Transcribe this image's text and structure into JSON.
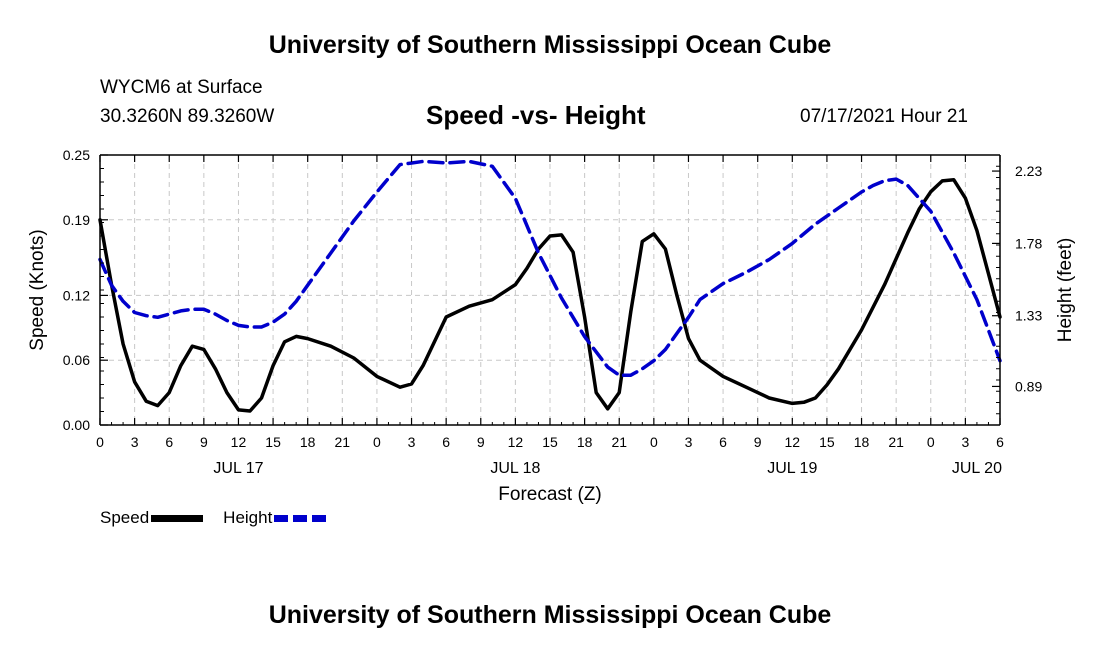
{
  "header": {
    "top_title": "University of Southern Mississippi Ocean Cube",
    "station": "WYCM6 at Surface",
    "coords": "30.3260N  89.3260W",
    "timestamp": "07/17/2021 Hour 21",
    "bottom_title": "University of Southern Mississippi Ocean Cube"
  },
  "chart_data": {
    "type": "line",
    "title": "Speed -vs- Height",
    "xlabel": "Forecast (Z)",
    "ylabel_left": "Speed (Knots)",
    "ylabel_right": "Height (feet)",
    "x_units": "hours from JUL 17 00Z",
    "xlim": [
      0,
      78
    ],
    "ylim_left": [
      0.0,
      0.25
    ],
    "ylim_right": [
      0.65,
      2.33
    ],
    "x_tick_hours": [
      0,
      3,
      6,
      9,
      12,
      15,
      18,
      21,
      24,
      27,
      30,
      33,
      36,
      39,
      42,
      45,
      48,
      51,
      54,
      57,
      60,
      63,
      66,
      69,
      72,
      75,
      78
    ],
    "x_tick_labels": [
      "0",
      "3",
      "6",
      "9",
      "12",
      "15",
      "18",
      "21",
      "0",
      "3",
      "6",
      "9",
      "12",
      "15",
      "18",
      "21",
      "0",
      "3",
      "6",
      "9",
      "12",
      "15",
      "18",
      "21",
      "0",
      "3",
      "6"
    ],
    "date_labels": [
      {
        "hour": 12,
        "label": "JUL 17"
      },
      {
        "hour": 36,
        "label": "JUL 18"
      },
      {
        "hour": 60,
        "label": "JUL 19"
      },
      {
        "hour": 76,
        "label": "JUL 20"
      }
    ],
    "y_left_ticks": [
      0.0,
      0.06,
      0.12,
      0.19,
      0.25
    ],
    "y_left_tick_labels": [
      "0.00",
      "0.06",
      "0.12",
      "0.19",
      "0.25"
    ],
    "y_right_ticks": [
      0.89,
      1.33,
      1.78,
      2.23
    ],
    "y_right_tick_labels": [
      "0.89",
      "1.33",
      "1.78",
      "2.23"
    ],
    "grid": true,
    "series": [
      {
        "name": "Speed",
        "axis": "left",
        "color": "#000000",
        "dash": "solid",
        "x": [
          0,
          1,
          2,
          3,
          4,
          5,
          6,
          7,
          8,
          9,
          10,
          11,
          12,
          13,
          14,
          15,
          16,
          17,
          18,
          20,
          22,
          24,
          26,
          27,
          28,
          30,
          32,
          34,
          36,
          37,
          38,
          39,
          40,
          41,
          42,
          43,
          44,
          45,
          46,
          47,
          48,
          49,
          50,
          51,
          52,
          54,
          56,
          58,
          60,
          61,
          62,
          63,
          64,
          66,
          68,
          70,
          71,
          72,
          73,
          74,
          75,
          76,
          77,
          78
        ],
        "values": [
          0.19,
          0.13,
          0.075,
          0.04,
          0.022,
          0.018,
          0.03,
          0.055,
          0.073,
          0.07,
          0.052,
          0.03,
          0.014,
          0.013,
          0.025,
          0.055,
          0.077,
          0.082,
          0.08,
          0.073,
          0.062,
          0.045,
          0.035,
          0.038,
          0.055,
          0.1,
          0.11,
          0.116,
          0.13,
          0.145,
          0.163,
          0.175,
          0.176,
          0.16,
          0.1,
          0.03,
          0.015,
          0.03,
          0.105,
          0.17,
          0.177,
          0.163,
          0.12,
          0.08,
          0.06,
          0.045,
          0.035,
          0.025,
          0.02,
          0.021,
          0.025,
          0.037,
          0.052,
          0.088,
          0.13,
          0.178,
          0.2,
          0.216,
          0.226,
          0.227,
          0.21,
          0.18,
          0.14,
          0.1
        ]
      },
      {
        "name": "Height",
        "axis": "right",
        "color": "#0000cc",
        "dash": "dashed",
        "x": [
          0,
          1,
          2,
          3,
          4,
          5,
          6,
          7,
          8,
          9,
          10,
          11,
          12,
          13,
          14,
          15,
          16,
          17,
          18,
          20,
          22,
          24,
          26,
          28,
          30,
          32,
          34,
          36,
          38,
          40,
          42,
          44,
          45,
          46,
          47,
          48,
          49,
          50,
          51,
          52,
          54,
          56,
          58,
          60,
          62,
          64,
          66,
          67,
          68,
          69,
          70,
          72,
          74,
          76,
          78
        ],
        "values": [
          1.68,
          1.52,
          1.42,
          1.35,
          1.33,
          1.32,
          1.34,
          1.36,
          1.37,
          1.37,
          1.34,
          1.3,
          1.27,
          1.26,
          1.26,
          1.29,
          1.34,
          1.42,
          1.52,
          1.72,
          1.92,
          2.1,
          2.27,
          2.29,
          2.28,
          2.29,
          2.26,
          2.06,
          1.72,
          1.44,
          1.2,
          1.01,
          0.96,
          0.96,
          1.0,
          1.05,
          1.12,
          1.22,
          1.32,
          1.43,
          1.53,
          1.6,
          1.68,
          1.78,
          1.9,
          2.0,
          2.1,
          2.14,
          2.17,
          2.18,
          2.14,
          1.98,
          1.72,
          1.43,
          1.05
        ]
      }
    ],
    "legend": [
      {
        "label": "Speed",
        "color": "#000000",
        "dash": "solid"
      },
      {
        "label": "Height",
        "color": "#0000cc",
        "dash": "dashed"
      }
    ]
  }
}
